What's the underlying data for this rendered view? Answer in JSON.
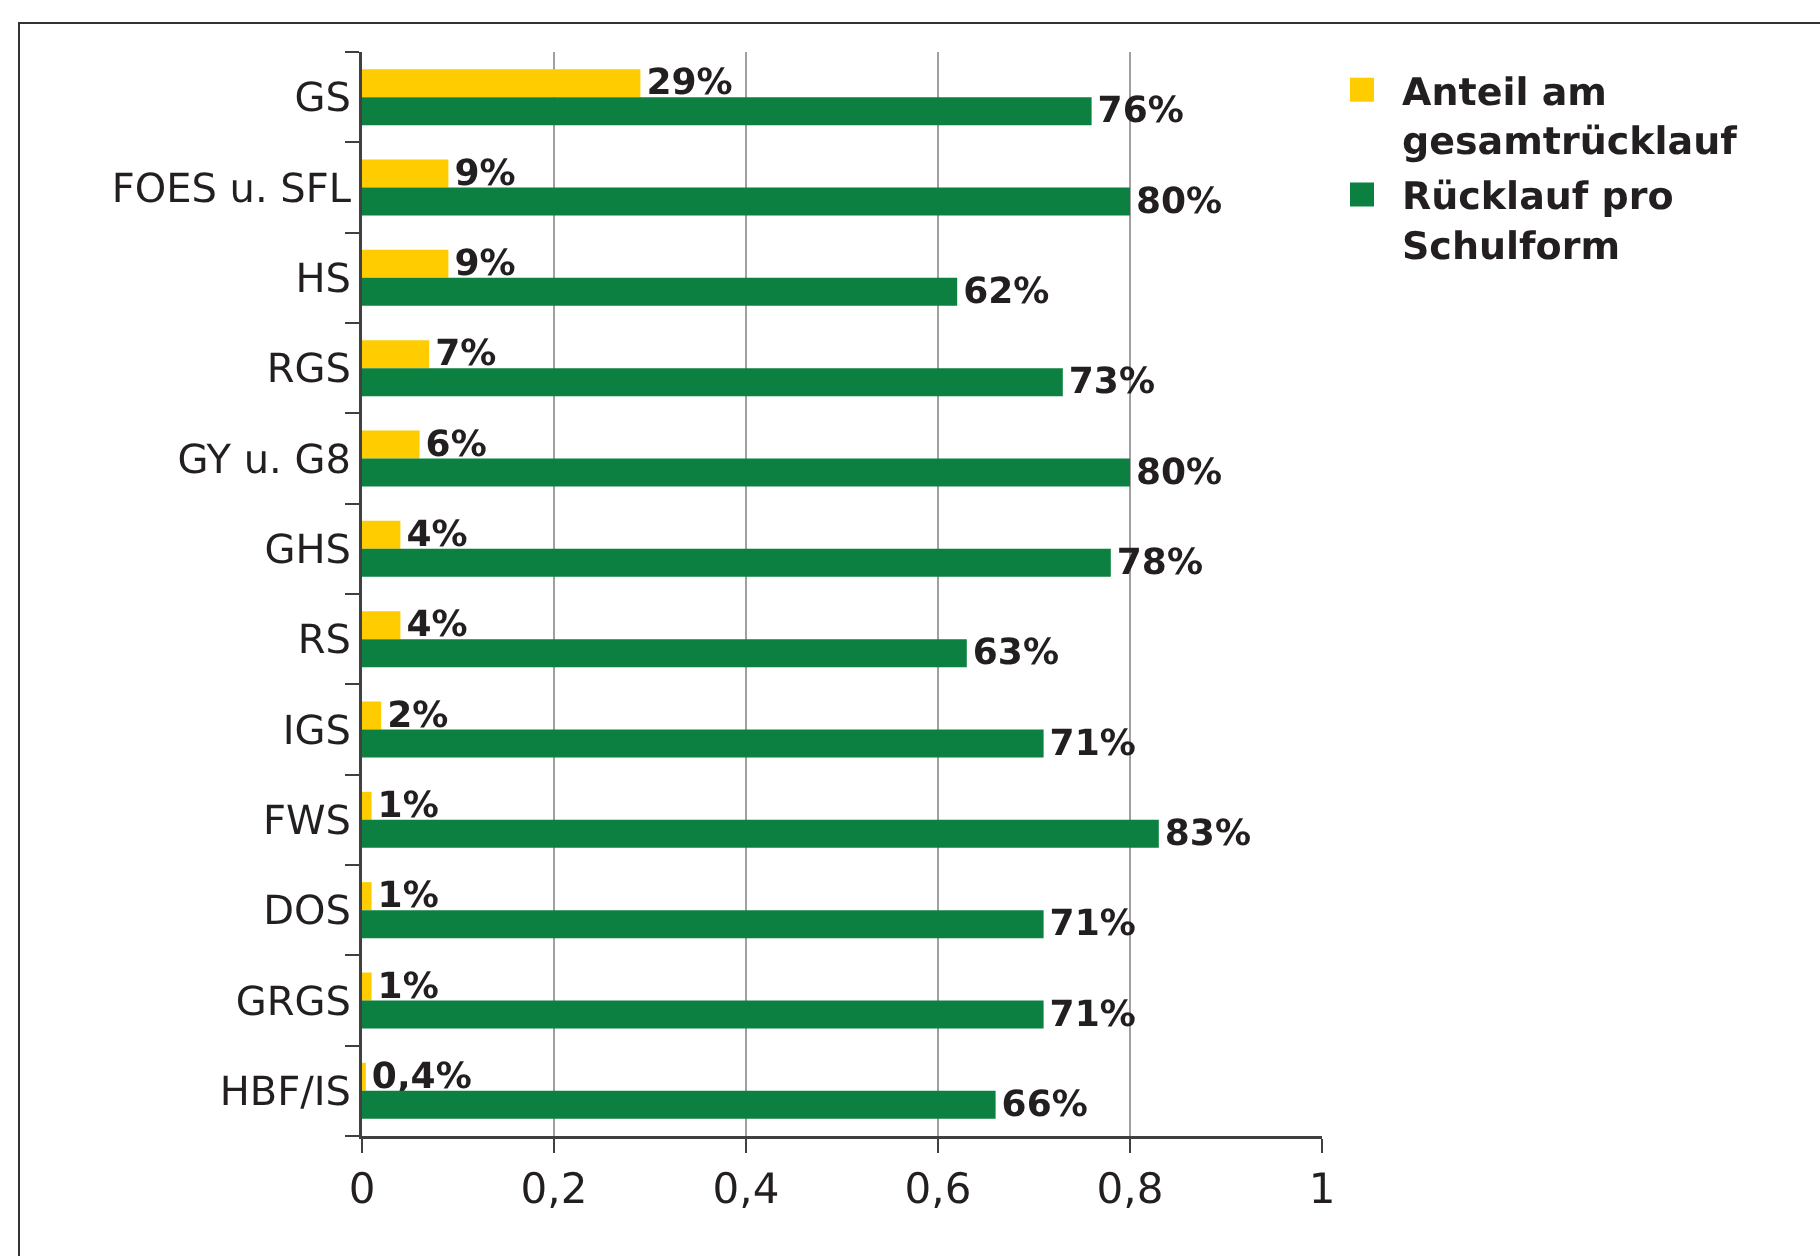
{
  "chart_data": {
    "type": "bar",
    "orientation": "horizontal",
    "categories": [
      "GS",
      "FOES u. SFL",
      "HS",
      "RGS",
      "GY u. G8",
      "GHS",
      "RS",
      "IGS",
      "FWS",
      "DOS",
      "GRGS",
      "HBF/IS"
    ],
    "series": [
      {
        "name": "Anteil am gesamtrücklauf",
        "color": "#ffcc00",
        "values": [
          0.29,
          0.09,
          0.09,
          0.07,
          0.06,
          0.04,
          0.04,
          0.02,
          0.01,
          0.01,
          0.01,
          0.004
        ],
        "value_labels": [
          "29%",
          "9%",
          "9%",
          "7%",
          "6%",
          "4%",
          "4%",
          "2%",
          "1%",
          "1%",
          "1%",
          "0,4%"
        ]
      },
      {
        "name": "Rücklauf pro Schulform",
        "color": "#0b8040",
        "values": [
          0.76,
          0.8,
          0.62,
          0.73,
          0.8,
          0.78,
          0.63,
          0.71,
          0.83,
          0.71,
          0.71,
          0.66
        ],
        "value_labels": [
          "76%",
          "80%",
          "62%",
          "73%",
          "80%",
          "78%",
          "63%",
          "71%",
          "83%",
          "71%",
          "71%",
          "66%"
        ]
      }
    ],
    "xlim": [
      0,
      1
    ],
    "xticks": [
      0,
      {
        "value": 0.2,
        "label": "0,2"
      },
      {
        "value": 0.4,
        "label": "0,4"
      },
      {
        "value": 0.6,
        "label": "0,6"
      },
      {
        "value": 0.8,
        "label": "0,8"
      },
      1
    ],
    "grid": "x",
    "legend": "top right"
  }
}
